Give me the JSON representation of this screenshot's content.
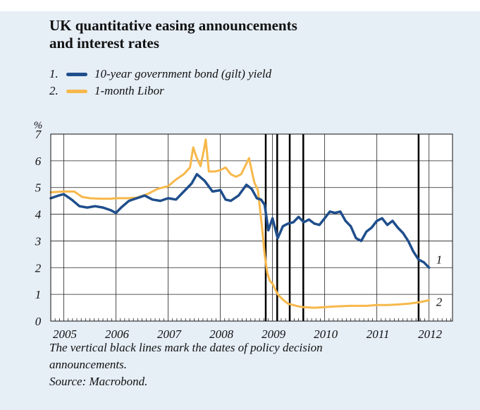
{
  "title": [
    "UK quantitative easing announcements",
    "and interest rates"
  ],
  "legend": [
    {
      "num": "1.",
      "label": "10-year government bond (gilt) yield",
      "color": "#1f4e8c"
    },
    {
      "num": "2.",
      "label": "1-month Libor",
      "color": "#f7b84b"
    }
  ],
  "footnote": [
    "The vertical black lines mark the dates of policy decision",
    "announcements."
  ],
  "source": "Source: Macrobond.",
  "chart_data": {
    "type": "line",
    "ylabel": "%",
    "ylim": [
      0,
      7
    ],
    "yticks": [
      0,
      1,
      2,
      3,
      4,
      5,
      6,
      7
    ],
    "xlim": [
      2004.75,
      2012.45
    ],
    "xticks": [
      2005,
      2006,
      2007,
      2008,
      2009,
      2010,
      2011,
      2012
    ],
    "grid": true,
    "series_end_labels": [
      "1",
      "2"
    ],
    "vlines": [
      2008.87,
      2009.09,
      2009.33,
      2009.59,
      2011.8
    ],
    "series": [
      {
        "color": "#1f4e8c",
        "x": [
          2004.75,
          2004.9,
          2005.0,
          2005.15,
          2005.3,
          2005.45,
          2005.6,
          2005.75,
          2005.9,
          2006.0,
          2006.1,
          2006.25,
          2006.4,
          2006.55,
          2006.7,
          2006.85,
          2007.0,
          2007.15,
          2007.3,
          2007.45,
          2007.55,
          2007.7,
          2007.85,
          2008.0,
          2008.1,
          2008.2,
          2008.35,
          2008.5,
          2008.6,
          2008.7,
          2008.78,
          2008.85,
          2008.92,
          2009.0,
          2009.1,
          2009.2,
          2009.3,
          2009.4,
          2009.5,
          2009.6,
          2009.7,
          2009.8,
          2009.9,
          2010.0,
          2010.1,
          2010.2,
          2010.3,
          2010.4,
          2010.5,
          2010.6,
          2010.7,
          2010.8,
          2010.9,
          2011.0,
          2011.1,
          2011.2,
          2011.3,
          2011.4,
          2011.5,
          2011.6,
          2011.7,
          2011.8,
          2011.9,
          2012.0
        ],
        "y": [
          4.6,
          4.7,
          4.75,
          4.55,
          4.3,
          4.25,
          4.3,
          4.25,
          4.15,
          4.05,
          4.25,
          4.5,
          4.6,
          4.7,
          4.55,
          4.5,
          4.6,
          4.55,
          4.85,
          5.15,
          5.5,
          5.25,
          4.85,
          4.9,
          4.55,
          4.5,
          4.7,
          5.1,
          4.95,
          4.6,
          4.55,
          4.35,
          3.4,
          3.85,
          3.1,
          3.55,
          3.65,
          3.7,
          3.9,
          3.7,
          3.8,
          3.65,
          3.6,
          3.85,
          4.1,
          4.05,
          4.1,
          3.75,
          3.55,
          3.1,
          3.0,
          3.35,
          3.5,
          3.75,
          3.85,
          3.6,
          3.75,
          3.5,
          3.3,
          3.0,
          2.6,
          2.3,
          2.2,
          2.0
        ]
      },
      {
        "color": "#f7b84b",
        "x": [
          2004.75,
          2005.0,
          2005.2,
          2005.35,
          2005.5,
          2005.7,
          2005.9,
          2006.0,
          2006.2,
          2006.4,
          2006.6,
          2006.8,
          2007.0,
          2007.15,
          2007.3,
          2007.42,
          2007.48,
          2007.55,
          2007.62,
          2007.68,
          2007.72,
          2007.78,
          2007.9,
          2008.0,
          2008.1,
          2008.2,
          2008.3,
          2008.4,
          2008.55,
          2008.65,
          2008.72,
          2008.8,
          2008.85,
          2008.9,
          2008.95,
          2009.0,
          2009.1,
          2009.2,
          2009.3,
          2009.4,
          2009.5,
          2009.6,
          2009.8,
          2010.0,
          2010.2,
          2010.5,
          2010.8,
          2011.0,
          2011.2,
          2011.4,
          2011.6,
          2011.8,
          2012.0
        ],
        "y": [
          4.82,
          4.85,
          4.85,
          4.65,
          4.6,
          4.58,
          4.58,
          4.6,
          4.6,
          4.62,
          4.75,
          4.95,
          5.05,
          5.3,
          5.5,
          5.75,
          6.5,
          6.1,
          5.8,
          6.35,
          6.8,
          5.6,
          5.6,
          5.65,
          5.75,
          5.5,
          5.4,
          5.5,
          6.1,
          5.2,
          4.9,
          3.5,
          2.5,
          1.8,
          1.5,
          1.4,
          1.0,
          0.8,
          0.65,
          0.6,
          0.55,
          0.52,
          0.5,
          0.52,
          0.55,
          0.57,
          0.57,
          0.6,
          0.6,
          0.62,
          0.65,
          0.7,
          0.78
        ]
      }
    ]
  }
}
